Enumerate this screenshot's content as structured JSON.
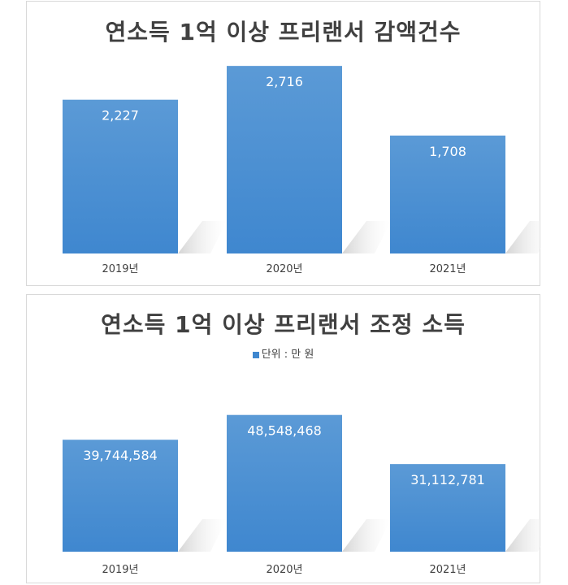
{
  "chart_data": [
    {
      "type": "bar",
      "title": "연소득 1억 이상 프리랜서 감액건수",
      "categories": [
        "2019년",
        "2020년",
        "2021년"
      ],
      "values": [
        2227,
        2716,
        1708
      ],
      "data_labels": [
        "2,227",
        "2,716",
        "1,708"
      ],
      "xlabel": "",
      "ylabel": "",
      "grid": false,
      "ylim": [
        0,
        3000
      ],
      "bar_color": "#3f87cf"
    },
    {
      "type": "bar",
      "title": "연소득 1억 이상 프리랜서 조정 소득",
      "legend": "단위 : 만 원",
      "legend_position": "top",
      "categories": [
        "2019년",
        "2020년",
        "2021년"
      ],
      "values": [
        39744584,
        48548468,
        31112781
      ],
      "data_labels": [
        "39,744,584",
        "48,548,468",
        "31,112,781"
      ],
      "xlabel": "",
      "ylabel": "",
      "grid": false,
      "ylim": [
        0,
        60000000
      ],
      "bar_color": "#3f87cf"
    }
  ]
}
